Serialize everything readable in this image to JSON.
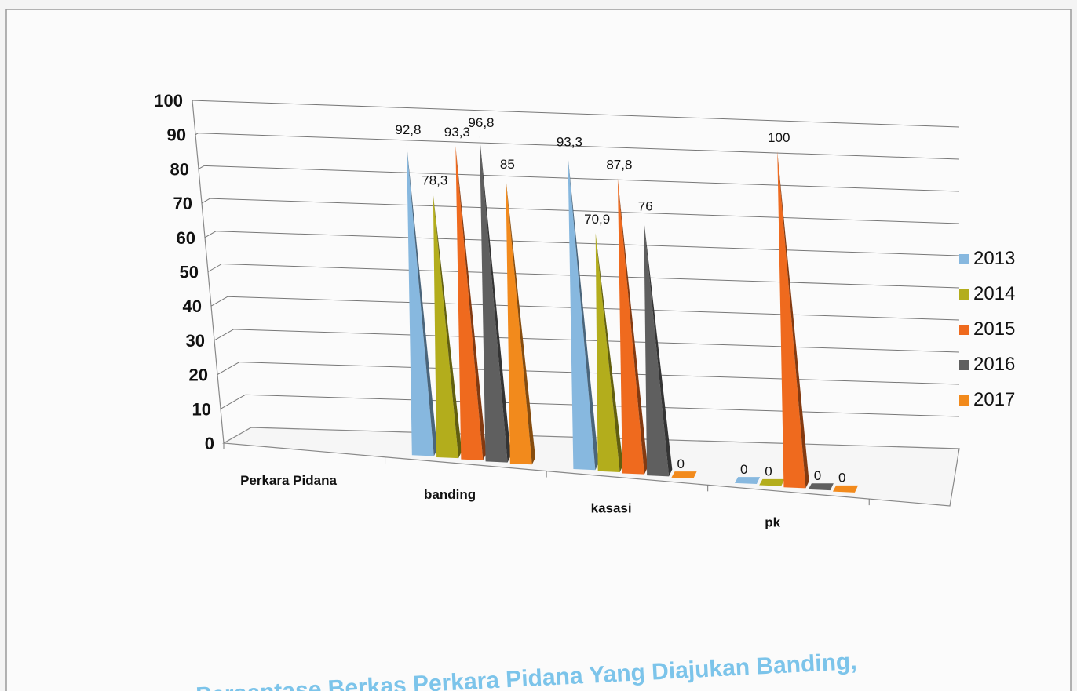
{
  "chart_data": {
    "type": "bar",
    "style": "3d-pyramid",
    "categories": [
      "Perkara Pidana",
      "banding",
      "kasasi",
      "pk"
    ],
    "ylim": [
      0,
      100
    ],
    "yticks": [
      "0",
      "10",
      "20",
      "30",
      "40",
      "50",
      "60",
      "70",
      "80",
      "90",
      "100"
    ],
    "legend_position": "right",
    "grid": true,
    "series": [
      {
        "name": "2013",
        "color": "#87b8df",
        "values": [
          null,
          92.8,
          93.3,
          0
        ],
        "labels": [
          "",
          "92,8",
          "93,3",
          "0"
        ]
      },
      {
        "name": "2014",
        "color": "#b3ad1c",
        "values": [
          null,
          78.3,
          70.9,
          0
        ],
        "labels": [
          "",
          "78,3",
          "70,9",
          "0"
        ]
      },
      {
        "name": "2015",
        "color": "#ef6a1e",
        "values": [
          null,
          93.3,
          87.8,
          100
        ],
        "labels": [
          "",
          "93,3",
          "87,8",
          "100"
        ]
      },
      {
        "name": "2016",
        "color": "#5f5f5f",
        "values": [
          null,
          96.8,
          76,
          0
        ],
        "labels": [
          "",
          "96,8",
          "76",
          "0"
        ]
      },
      {
        "name": "2017",
        "color": "#f28a1c",
        "values": [
          null,
          85,
          0,
          0
        ],
        "labels": [
          "",
          "85",
          "0",
          "0"
        ]
      }
    ]
  },
  "caption": "Persentase Berkas Perkara Pidana Yang Diajukan Banding,"
}
